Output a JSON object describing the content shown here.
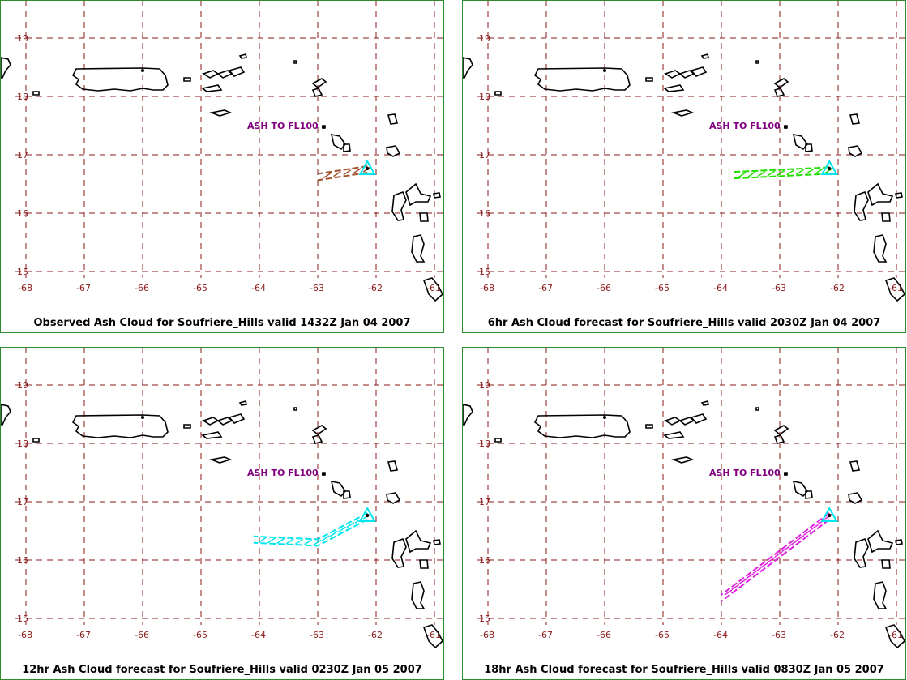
{
  "map": {
    "lon_ticks": [
      -68,
      -67,
      -66,
      -65,
      -64,
      -63,
      -62,
      -61
    ],
    "lat_ticks": [
      19,
      18,
      17,
      16,
      15
    ],
    "lon_range": [
      -68,
      -61
    ],
    "lat_range": [
      14.8,
      19.7
    ],
    "grid_color": "#8b1a1a",
    "volcano": {
      "lon": -62.15,
      "lat": 16.75,
      "icon": "triangle-icon",
      "color": "#00e5ee"
    }
  },
  "panels": [
    {
      "caption": "Observed Ash Cloud for Soufriere_Hills valid 1432Z Jan 04 2007",
      "label": "ASH TO FL100",
      "cloud_color": "#a0522d",
      "cloud_path": [
        [
          -62.15,
          16.75
        ],
        [
          -63.0,
          16.62
        ]
      ]
    },
    {
      "caption": "6hr Ash Cloud forecast for Soufriere_Hills valid 2030Z Jan 04 2007",
      "label": "ASH TO FL100",
      "cloud_color": "#22dd00",
      "cloud_path": [
        [
          -62.15,
          16.73
        ],
        [
          -63.8,
          16.65
        ]
      ]
    },
    {
      "caption": "12hr Ash Cloud forecast for Soufriere_Hills valid 0230Z Jan 05 2007",
      "label": "ASH TO FL100",
      "cloud_color": "#00e5ee",
      "cloud_path": [
        [
          -62.15,
          16.75
        ],
        [
          -63.0,
          16.3
        ],
        [
          -64.1,
          16.35
        ]
      ]
    },
    {
      "caption": "18hr Ash Cloud forecast for Soufriere_Hills valid 0830Z Jan 05 2007",
      "label": "ASH TO FL100",
      "cloud_color": "#e020e0",
      "cloud_path": [
        [
          -62.15,
          16.75
        ],
        [
          -64.0,
          15.35
        ]
      ]
    }
  ]
}
